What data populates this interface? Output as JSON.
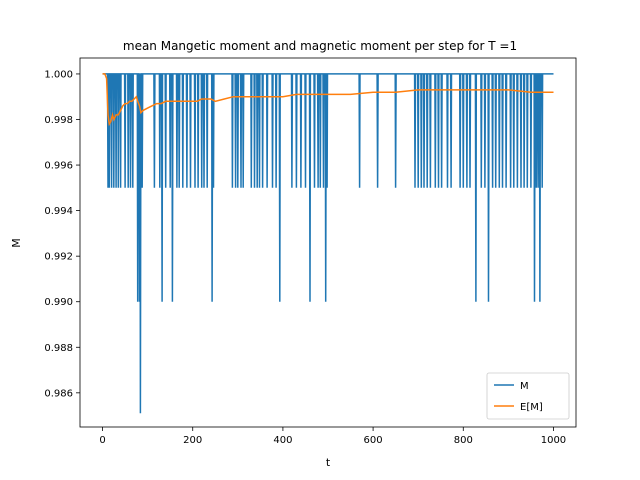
{
  "chart_data": {
    "type": "line",
    "title": "mean Mangetic moment and magnetic moment per step for T =1",
    "xlabel": "t",
    "ylabel": "M",
    "xlim": [
      -50,
      1050
    ],
    "ylim": [
      0.9845,
      1.0007
    ],
    "xticks": [
      0,
      200,
      400,
      600,
      800,
      1000
    ],
    "xtick_labels": [
      "0",
      "200",
      "400",
      "600",
      "800",
      "1000"
    ],
    "yticks": [
      0.986,
      0.988,
      0.99,
      0.992,
      0.994,
      0.996,
      0.998,
      1.0
    ],
    "ytick_labels": [
      "0.986",
      "0.988",
      "0.990",
      "0.992",
      "0.994",
      "0.996",
      "0.998",
      "1.000"
    ],
    "grid": false,
    "legend_position": "bottom-right",
    "baseline_M": 1.0,
    "series": [
      {
        "name": "M",
        "color": "#1f77b4",
        "dips": [
          [
            12,
            0.995
          ],
          [
            15,
            0.995
          ],
          [
            20,
            0.995
          ],
          [
            25,
            0.995
          ],
          [
            30,
            0.995
          ],
          [
            35,
            0.995
          ],
          [
            40,
            0.995
          ],
          [
            50,
            0.995
          ],
          [
            57,
            0.995
          ],
          [
            62,
            0.995
          ],
          [
            67,
            0.995
          ],
          [
            78,
            0.99
          ],
          [
            82,
            0.99
          ],
          [
            84,
            0.9851
          ],
          [
            88,
            0.995
          ],
          [
            115,
            0.995
          ],
          [
            127,
            0.995
          ],
          [
            132,
            0.99
          ],
          [
            140,
            0.995
          ],
          [
            150,
            0.995
          ],
          [
            155,
            0.99
          ],
          [
            165,
            0.995
          ],
          [
            170,
            0.995
          ],
          [
            178,
            0.995
          ],
          [
            187,
            0.995
          ],
          [
            195,
            0.995
          ],
          [
            205,
            0.995
          ],
          [
            212,
            0.995
          ],
          [
            220,
            0.995
          ],
          [
            225,
            0.995
          ],
          [
            232,
            0.995
          ],
          [
            243,
            0.99
          ],
          [
            246,
            0.995
          ],
          [
            288,
            0.995
          ],
          [
            295,
            0.995
          ],
          [
            300,
            0.995
          ],
          [
            307,
            0.995
          ],
          [
            312,
            0.995
          ],
          [
            330,
            0.995
          ],
          [
            337,
            0.995
          ],
          [
            343,
            0.995
          ],
          [
            348,
            0.995
          ],
          [
            355,
            0.995
          ],
          [
            365,
            0.995
          ],
          [
            377,
            0.995
          ],
          [
            385,
            0.995
          ],
          [
            393,
            0.99
          ],
          [
            420,
            0.995
          ],
          [
            430,
            0.995
          ],
          [
            440,
            0.995
          ],
          [
            450,
            0.995
          ],
          [
            460,
            0.99
          ],
          [
            470,
            0.995
          ],
          [
            478,
            0.995
          ],
          [
            483,
            0.995
          ],
          [
            490,
            0.995
          ],
          [
            495,
            0.99
          ],
          [
            498,
            0.995
          ],
          [
            570,
            0.995
          ],
          [
            610,
            0.995
          ],
          [
            650,
            0.995
          ],
          [
            693,
            0.995
          ],
          [
            700,
            0.995
          ],
          [
            707,
            0.995
          ],
          [
            713,
            0.995
          ],
          [
            720,
            0.995
          ],
          [
            727,
            0.995
          ],
          [
            738,
            0.995
          ],
          [
            745,
            0.995
          ],
          [
            752,
            0.995
          ],
          [
            765,
            0.995
          ],
          [
            773,
            0.995
          ],
          [
            793,
            0.995
          ],
          [
            800,
            0.995
          ],
          [
            808,
            0.995
          ],
          [
            815,
            0.995
          ],
          [
            828,
            0.99
          ],
          [
            840,
            0.995
          ],
          [
            848,
            0.995
          ],
          [
            856,
            0.99
          ],
          [
            865,
            0.995
          ],
          [
            872,
            0.995
          ],
          [
            880,
            0.995
          ],
          [
            887,
            0.995
          ],
          [
            895,
            0.995
          ],
          [
            905,
            0.995
          ],
          [
            912,
            0.995
          ],
          [
            920,
            0.995
          ],
          [
            928,
            0.995
          ],
          [
            935,
            0.995
          ],
          [
            942,
            0.995
          ],
          [
            950,
            0.995
          ],
          [
            958,
            0.99
          ],
          [
            962,
            0.995
          ],
          [
            966,
            0.995
          ],
          [
            970,
            0.99
          ],
          [
            975,
            0.995
          ]
        ]
      },
      {
        "name": "E[M]",
        "color": "#ff7f0e",
        "points": [
          [
            0,
            1.0
          ],
          [
            5,
            1.0
          ],
          [
            9,
            0.9998
          ],
          [
            12,
            0.9982
          ],
          [
            15,
            0.9978
          ],
          [
            18,
            0.9979
          ],
          [
            22,
            0.9982
          ],
          [
            25,
            0.998
          ],
          [
            30,
            0.9982
          ],
          [
            35,
            0.9982
          ],
          [
            40,
            0.9984
          ],
          [
            45,
            0.9986
          ],
          [
            50,
            0.9987
          ],
          [
            55,
            0.9987
          ],
          [
            60,
            0.9988
          ],
          [
            65,
            0.9988
          ],
          [
            70,
            0.9989
          ],
          [
            75,
            0.999
          ],
          [
            78,
            0.9988
          ],
          [
            82,
            0.9986
          ],
          [
            85,
            0.9983
          ],
          [
            90,
            0.9984
          ],
          [
            100,
            0.9985
          ],
          [
            110,
            0.9986
          ],
          [
            120,
            0.9987
          ],
          [
            130,
            0.9987
          ],
          [
            140,
            0.9988
          ],
          [
            150,
            0.9988
          ],
          [
            160,
            0.9988
          ],
          [
            170,
            0.9988
          ],
          [
            180,
            0.9988
          ],
          [
            190,
            0.9988
          ],
          [
            200,
            0.9988
          ],
          [
            210,
            0.9988
          ],
          [
            220,
            0.9989
          ],
          [
            230,
            0.9989
          ],
          [
            240,
            0.9989
          ],
          [
            250,
            0.9988
          ],
          [
            270,
            0.9989
          ],
          [
            290,
            0.999
          ],
          [
            310,
            0.999
          ],
          [
            340,
            0.999
          ],
          [
            370,
            0.999
          ],
          [
            400,
            0.999
          ],
          [
            430,
            0.9991
          ],
          [
            460,
            0.9991
          ],
          [
            500,
            0.9991
          ],
          [
            550,
            0.9991
          ],
          [
            600,
            0.9992
          ],
          [
            650,
            0.9992
          ],
          [
            700,
            0.9993
          ],
          [
            750,
            0.9993
          ],
          [
            800,
            0.9993
          ],
          [
            850,
            0.9993
          ],
          [
            900,
            0.9993
          ],
          [
            950,
            0.9992
          ],
          [
            980,
            0.9992
          ],
          [
            1000,
            0.9992
          ]
        ]
      }
    ]
  }
}
